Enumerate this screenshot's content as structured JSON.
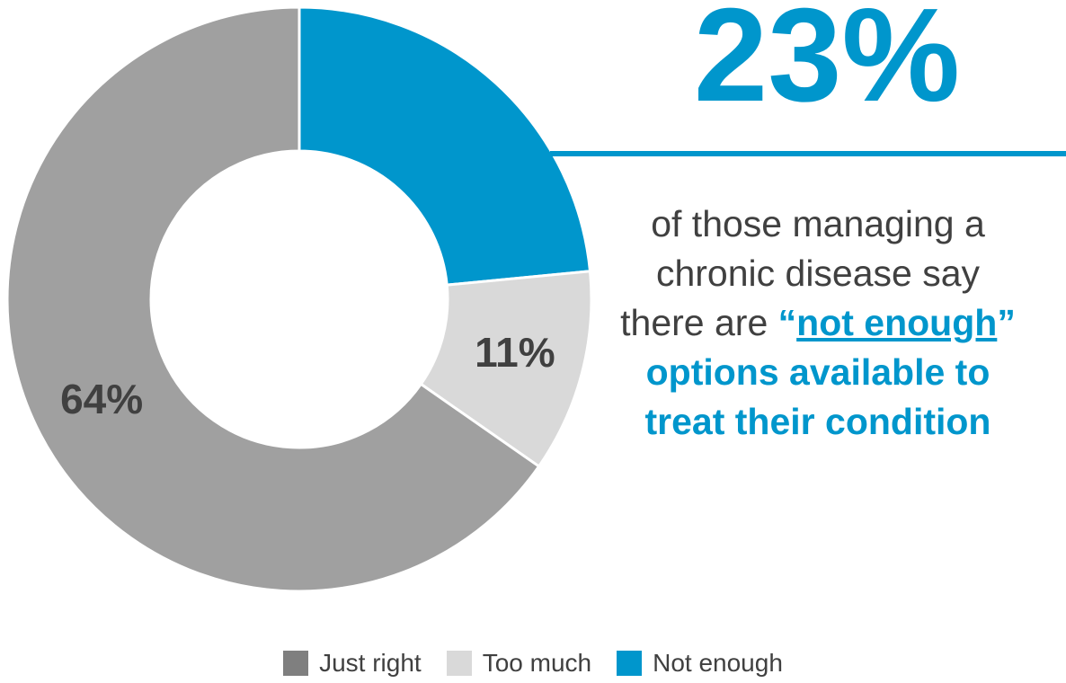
{
  "chart_data": {
    "type": "pie",
    "donut": true,
    "categories": [
      "Not enough",
      "Too much",
      "Just right"
    ],
    "values": [
      23,
      11,
      64
    ],
    "value_labels": [
      "",
      "11%",
      "64%"
    ],
    "colors": [
      "#0096cc",
      "#d9d9d9",
      "#a0a0a0"
    ],
    "label_color": "#404040",
    "legend": {
      "position": "bottom",
      "items": [
        {
          "label": "Just right",
          "color": "#7f7f7f"
        },
        {
          "label": "Too much",
          "color": "#d9d9d9"
        },
        {
          "label": "Not enough",
          "color": "#0096cc"
        }
      ]
    }
  },
  "callout": {
    "big_value": "23%",
    "line1": "of those managing a",
    "line2": "chronic disease say",
    "line3_prefix": "there are ",
    "quote_open": "“",
    "highlight": "not enough",
    "quote_close": "”",
    "line4": "options available to",
    "line5": "treat their condition",
    "accent_color": "#0096cc",
    "text_color": "#404040"
  }
}
